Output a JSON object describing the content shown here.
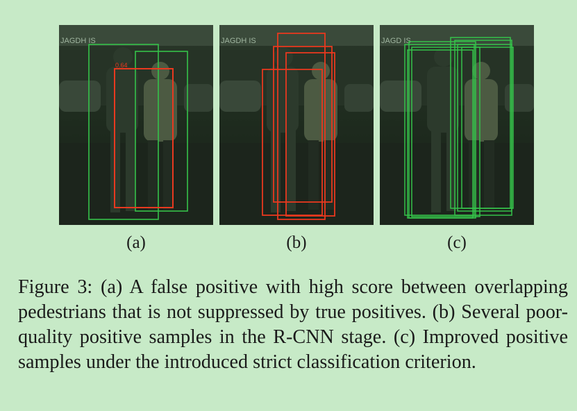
{
  "panels": [
    {
      "id": "a",
      "label": "(a)",
      "sign_text": "JAGDH  IS",
      "score_text": "0.64",
      "boxes": [
        {
          "color": "#35c24a"
        },
        {
          "color": "#35c24a"
        },
        {
          "color": "#e8391f"
        }
      ]
    },
    {
      "id": "b",
      "label": "(b)",
      "sign_text": "JAGDH  IS",
      "boxes": [
        {
          "color": "#e8391f"
        },
        {
          "color": "#e8391f"
        },
        {
          "color": "#e8391f"
        },
        {
          "color": "#e8391f"
        }
      ]
    },
    {
      "id": "c",
      "label": "(c)",
      "sign_text": "JAGD  IS",
      "boxes": [
        {
          "color": "#35c24a"
        },
        {
          "color": "#35c24a"
        },
        {
          "color": "#35c24a"
        },
        {
          "color": "#35c24a"
        },
        {
          "color": "#35c24a"
        },
        {
          "color": "#35c24a"
        },
        {
          "color": "#35c24a"
        },
        {
          "color": "#35c24a"
        }
      ]
    }
  ],
  "caption": "Figure 3: (a) A false positive with high score between overlapping pedestrians that is not suppressed by true positives. (b) Several poor-quality positive samples in the R-CNN stage. (c) Improved positive samples under the introduced strict classification criterion."
}
